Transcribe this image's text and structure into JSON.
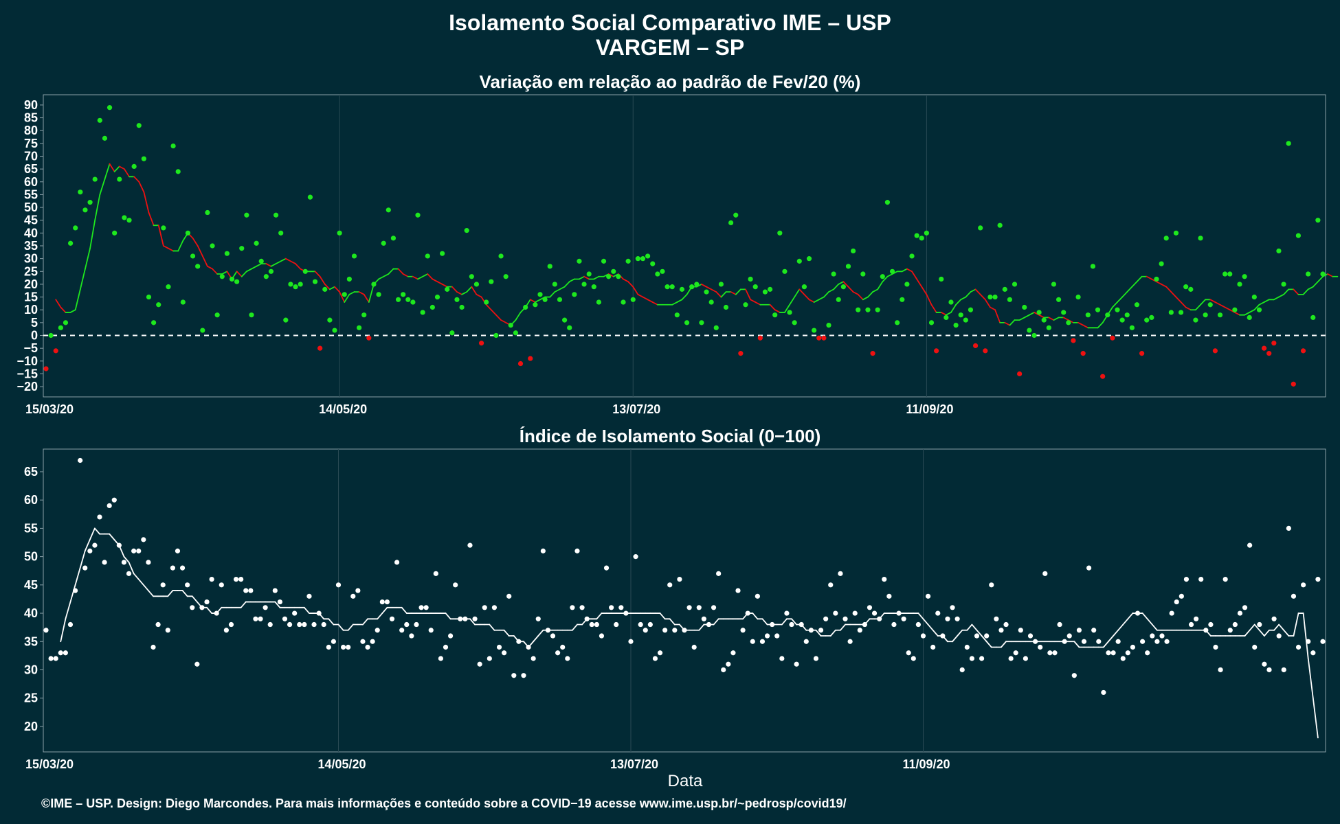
{
  "header": {
    "title": "Isolamento Social Comparativo IME – USP",
    "subtitle": "VARGEM – SP"
  },
  "footer": {
    "credit": "©IME – USP. Design: Diego Marcondes. Para mais informações e conteúdo sobre a COVID−19 acesse www.ime.usp.br/~pedrosp/covid19/"
  },
  "colors": {
    "background": "#022a35",
    "positive": "#1ee81e",
    "negative": "#ee1111",
    "index": "#ffffff",
    "grid": "#2a4a55",
    "frame": "#8aa0a8"
  },
  "chart_data": [
    {
      "type": "scatter",
      "title": "Variação em relação ao padrão de Fev/20 (%)",
      "xlabel": "",
      "ylabel": "",
      "x_start": "2020-03-15",
      "x_ticks": [
        "15/03/20",
        "14/05/20",
        "13/07/20",
        "11/09/20"
      ],
      "yticks": [
        -20,
        -15,
        -10,
        -5,
        0,
        5,
        10,
        15,
        20,
        25,
        30,
        35,
        40,
        45,
        50,
        55,
        60,
        65,
        70,
        75,
        80,
        85,
        90
      ],
      "ylim": [
        -24,
        94
      ],
      "reference_line": 0,
      "grid": true,
      "series": [
        {
          "values": [
            -13,
            0,
            -6,
            3,
            5,
            36,
            42,
            56,
            49,
            52,
            61,
            84,
            77,
            89,
            40,
            61,
            46,
            45,
            66,
            82,
            69,
            15,
            5,
            12,
            42,
            19,
            74,
            64,
            13,
            40,
            31,
            27,
            2,
            48,
            35,
            8,
            23,
            32,
            22,
            21,
            34,
            47,
            8,
            36,
            29,
            23,
            25,
            47,
            40,
            6,
            20,
            19,
            20,
            25,
            54,
            21,
            -5,
            18,
            6,
            2,
            40,
            16,
            22,
            31,
            3,
            8,
            -1,
            20,
            16,
            36,
            49,
            38,
            14,
            16,
            14,
            13,
            47,
            9,
            31,
            11,
            15,
            32,
            18,
            1,
            14,
            11,
            41,
            23,
            20,
            -3,
            13,
            21,
            0,
            31,
            23,
            4,
            1,
            -11,
            11,
            -9,
            12,
            16,
            14,
            27,
            20,
            14,
            6,
            3,
            16,
            29,
            20,
            24,
            19,
            13,
            29,
            23,
            25,
            23,
            13,
            29,
            14,
            30,
            30,
            31,
            28,
            24,
            25,
            19,
            19,
            8,
            18,
            5,
            19,
            20,
            5,
            17,
            13,
            3,
            20,
            11,
            44,
            47,
            -7,
            12,
            22,
            19,
            -1,
            17,
            18,
            8,
            40,
            25,
            9,
            5,
            29,
            19,
            30,
            2,
            -1,
            -1,
            4,
            24,
            14,
            19,
            27,
            33,
            10,
            24,
            10,
            -7,
            10,
            23,
            52,
            25,
            5,
            14,
            20,
            31,
            39,
            38,
            40,
            5,
            -6,
            22,
            7,
            13,
            4,
            8,
            6,
            10,
            -4,
            42,
            -6,
            15,
            15,
            43,
            18,
            14,
            20,
            -15,
            11,
            2,
            0,
            9,
            6,
            3,
            20,
            14,
            9,
            5,
            -2,
            15,
            -7,
            8,
            27,
            10,
            -16,
            8,
            -1,
            10,
            6,
            8,
            3,
            12,
            -7,
            6,
            7,
            22,
            28,
            38,
            9,
            40,
            9,
            19,
            18,
            6,
            38,
            8,
            12,
            -6,
            8,
            24,
            24,
            10,
            20,
            23,
            7,
            15,
            10,
            -5,
            -7,
            -3,
            33,
            20,
            75,
            -19,
            39,
            -6,
            24,
            7,
            45,
            24
          ],
          "trend_start_index": 2,
          "trend": [
            14,
            11,
            9,
            9,
            10,
            18,
            26,
            34,
            45,
            55,
            61,
            67,
            64,
            66,
            65,
            62,
            62,
            60,
            56,
            48,
            43,
            43,
            35,
            34,
            33,
            33,
            37,
            40,
            38,
            35,
            31,
            27,
            26,
            24,
            24,
            25,
            22,
            25,
            23,
            25,
            26,
            27,
            28,
            28,
            27,
            28,
            29,
            30,
            29,
            28,
            26,
            25,
            25,
            25,
            23,
            20,
            18,
            19,
            17,
            13,
            16,
            17,
            17,
            16,
            13,
            20,
            22,
            23,
            24,
            26,
            26,
            24,
            23,
            23,
            22,
            23,
            24,
            22,
            21,
            20,
            19,
            19,
            17,
            16,
            17,
            19,
            16,
            15,
            12,
            10,
            8,
            6,
            5,
            4,
            6,
            9,
            11,
            14,
            13,
            14,
            15,
            15,
            17,
            18,
            19,
            21,
            22,
            22,
            23,
            22,
            22,
            23,
            23,
            24,
            23,
            24,
            22,
            21,
            19,
            16,
            15,
            14,
            13,
            12,
            12,
            12,
            12,
            13,
            14,
            16,
            19,
            19,
            20,
            19,
            18,
            17,
            15,
            17,
            17,
            16,
            18,
            18,
            14,
            13,
            12,
            12,
            12,
            10,
            9,
            9,
            12,
            15,
            18,
            16,
            14,
            13,
            14,
            15,
            17,
            18,
            20,
            21,
            19,
            17,
            16,
            14,
            15,
            17,
            18,
            21,
            23,
            24,
            25,
            25,
            26,
            25,
            22,
            19,
            16,
            12,
            9,
            9,
            8,
            9,
            12,
            14,
            15,
            17,
            18,
            16,
            14,
            11,
            10,
            5,
            5,
            4,
            6,
            6,
            7,
            8,
            9,
            8,
            7,
            7,
            6,
            7,
            7,
            6,
            5,
            5,
            4,
            3,
            3,
            3,
            5,
            8,
            11,
            13,
            15,
            17,
            19,
            21,
            23,
            23,
            22,
            21,
            20,
            19,
            17,
            15,
            13,
            11,
            10,
            10,
            12,
            14,
            14,
            13,
            12,
            11,
            10,
            9,
            8,
            8,
            9,
            10,
            12,
            13,
            14,
            14,
            15,
            16,
            18,
            18,
            16,
            16,
            18,
            19,
            21,
            23,
            24,
            23,
            23
          ]
        }
      ]
    },
    {
      "type": "scatter",
      "title": "Índice de Isolamento Social (0−100)",
      "xlabel": "Data",
      "ylabel": "",
      "x_start": "2020-03-15",
      "x_ticks": [
        "15/03/20",
        "14/05/20",
        "13/07/20",
        "11/09/20"
      ],
      "yticks": [
        20,
        25,
        30,
        35,
        40,
        45,
        50,
        55,
        60,
        65
      ],
      "ylim": [
        15.5,
        69
      ],
      "grid": true,
      "series": [
        {
          "values": [
            37,
            32,
            32,
            33,
            33,
            38,
            44,
            67,
            48,
            51,
            52,
            57,
            49,
            59,
            60,
            52,
            49,
            47,
            51,
            51,
            53,
            49,
            34,
            38,
            45,
            37,
            48,
            51,
            48,
            45,
            41,
            31,
            41,
            42,
            46,
            40,
            45,
            37,
            38,
            46,
            46,
            44,
            44,
            39,
            39,
            41,
            38,
            44,
            42,
            39,
            38,
            40,
            38,
            38,
            43,
            38,
            40,
            38,
            34,
            35,
            45,
            34,
            34,
            43,
            44,
            35,
            34,
            35,
            37,
            42,
            42,
            39,
            49,
            37,
            38,
            36,
            38,
            41,
            41,
            37,
            47,
            32,
            34,
            36,
            45,
            39,
            39,
            52,
            39,
            31,
            41,
            32,
            41,
            34,
            33,
            43,
            29,
            35,
            29,
            34,
            32,
            39,
            51,
            37,
            36,
            33,
            34,
            32,
            41,
            51,
            41,
            39,
            38,
            38,
            36,
            48,
            41,
            38,
            41,
            40,
            35,
            50,
            38,
            37,
            38,
            32,
            33,
            37,
            45,
            37,
            46,
            37,
            41,
            34,
            41,
            39,
            38,
            41,
            47,
            30,
            31,
            33,
            44,
            37,
            40,
            35,
            43,
            35,
            36,
            38,
            36,
            32,
            40,
            38,
            31,
            38,
            35,
            37,
            32,
            37,
            39,
            45,
            40,
            47,
            39,
            35,
            40,
            37,
            38,
            41,
            40,
            39,
            46,
            43,
            38,
            40,
            39,
            33,
            32,
            38,
            36,
            43,
            34,
            40,
            36,
            39,
            41,
            39,
            30,
            34,
            32,
            36,
            32,
            36,
            45,
            39,
            37,
            38,
            32,
            33,
            37,
            32,
            36,
            35,
            34,
            47,
            33,
            33,
            38,
            35,
            36,
            29,
            37,
            35,
            48,
            37,
            35,
            26,
            33,
            33,
            35,
            32,
            33,
            34,
            40,
            35,
            33,
            36,
            35,
            36,
            35,
            40,
            42,
            43,
            46,
            38,
            39,
            46,
            37,
            38,
            34,
            30,
            46,
            37,
            38,
            40,
            41,
            52,
            34,
            38,
            31,
            30,
            39,
            36,
            30,
            55,
            43,
            34,
            45,
            35,
            33,
            46,
            35
          ],
          "trend_start_index": 3,
          "trend": [
            35,
            39,
            42,
            45,
            48,
            51,
            53,
            55,
            54,
            54,
            54,
            53,
            52,
            50,
            49,
            47,
            46,
            45,
            44,
            43,
            43,
            43,
            43,
            44,
            44,
            44,
            43,
            43,
            42,
            41,
            41,
            40,
            40,
            41,
            41,
            41,
            41,
            41,
            42,
            42,
            42,
            42,
            42,
            42,
            42,
            41,
            41,
            41,
            41,
            41,
            41,
            40,
            40,
            40,
            39,
            39,
            38,
            38,
            37,
            37,
            38,
            38,
            38,
            39,
            39,
            39,
            40,
            41,
            41,
            41,
            41,
            40,
            40,
            40,
            40,
            40,
            40,
            40,
            40,
            40,
            39,
            39,
            39,
            39,
            39,
            38,
            38,
            38,
            38,
            37,
            37,
            37,
            36,
            36,
            35,
            35,
            34,
            35,
            36,
            37,
            37,
            37,
            37,
            37,
            37,
            37,
            38,
            38,
            39,
            39,
            39,
            40,
            40,
            40,
            40,
            40,
            40,
            40,
            40,
            40,
            40,
            40,
            40,
            40,
            39,
            39,
            38,
            38,
            37,
            37,
            37,
            37,
            38,
            38,
            38,
            39,
            39,
            39,
            39,
            39,
            39,
            40,
            40,
            39,
            39,
            38,
            38,
            38,
            38,
            39,
            39,
            38,
            38,
            37,
            37,
            37,
            36,
            36,
            36,
            37,
            37,
            38,
            38,
            38,
            38,
            38,
            39,
            39,
            39,
            40,
            40,
            40,
            40,
            40,
            40,
            40,
            40,
            39,
            38,
            37,
            36,
            36,
            35,
            35,
            36,
            37,
            37,
            38,
            37,
            36,
            35,
            34,
            34,
            34,
            35,
            35,
            35,
            35,
            35,
            35,
            35,
            35,
            35,
            35,
            35,
            35,
            35,
            35,
            35,
            34,
            34,
            34,
            34,
            34,
            34,
            35,
            36,
            37,
            38,
            39,
            40,
            40,
            40,
            39,
            38,
            37,
            37,
            37,
            37,
            37,
            37,
            37,
            37,
            37,
            37,
            37,
            36,
            36,
            36,
            36,
            36,
            36,
            36,
            36,
            37,
            38,
            37,
            36,
            37,
            37,
            38,
            37,
            36,
            36,
            40,
            40,
            32,
            25,
            18
          ]
        }
      ]
    }
  ]
}
